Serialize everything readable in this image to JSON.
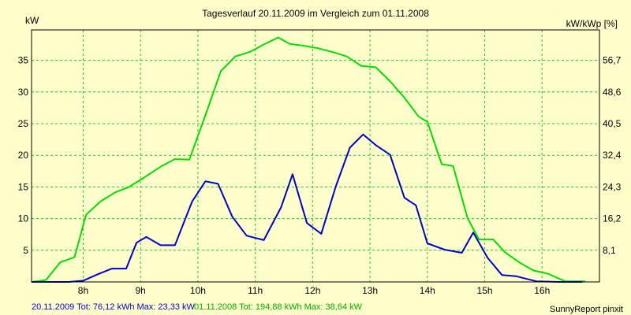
{
  "chart_data": {
    "type": "line",
    "title": "Tagesverlauf 20.11.2009 im Vergleich zum 01.11.2008",
    "y_left_label": "kW",
    "y_right_label": "kW/kWp [%]",
    "x_unit": "hours",
    "xlim": [
      7.1,
      17.0
    ],
    "ylim": [
      0,
      39.8
    ],
    "x_tick_values": [
      8,
      9,
      10,
      11,
      12,
      13,
      14,
      15,
      16
    ],
    "x_tick_labels": [
      "8h",
      "9h",
      "10h",
      "11h",
      "12h",
      "13h",
      "14h",
      "15h",
      "16h"
    ],
    "y_left_ticks": [
      5,
      10,
      15,
      20,
      25,
      30,
      35
    ],
    "y_left_tick_labels": [
      "5",
      "10",
      "15",
      "20",
      "25",
      "30",
      "35"
    ],
    "y_right_tick_labels": [
      "8,1",
      "16,2",
      "24,3",
      "32,4",
      "40,5",
      "48,6",
      "56,7"
    ],
    "grid": true,
    "series": [
      {
        "name": "20.11.2009",
        "color": "#0000CC",
        "x": [
          7.1,
          7.75,
          8.0,
          8.25,
          8.5,
          8.75,
          8.93,
          9.1,
          9.35,
          9.6,
          9.9,
          10.13,
          10.35,
          10.6,
          10.85,
          11.15,
          11.45,
          11.65,
          11.9,
          12.15,
          12.4,
          12.65,
          12.88,
          13.1,
          13.35,
          13.6,
          13.8,
          14.0,
          14.3,
          14.6,
          14.8,
          15.05,
          15.3,
          15.55,
          15.9,
          16.3,
          16.7
        ],
        "y": [
          0,
          0,
          0.2,
          1.2,
          2.1,
          2.1,
          6.2,
          7.1,
          5.8,
          5.8,
          12.7,
          15.9,
          15.5,
          10.3,
          7.3,
          6.6,
          11.8,
          17.0,
          9.3,
          7.6,
          15.0,
          21.2,
          23.3,
          21.6,
          20.1,
          13.3,
          12.1,
          6.1,
          5.1,
          4.6,
          7.8,
          3.8,
          1.1,
          0.9,
          0.1,
          0,
          0
        ]
      },
      {
        "name": "01.11.2008",
        "color": "#00E000",
        "x": [
          7.1,
          7.35,
          7.6,
          7.85,
          8.05,
          8.3,
          8.55,
          8.8,
          9.05,
          9.35,
          9.6,
          9.85,
          10.15,
          10.4,
          10.65,
          10.9,
          11.15,
          11.4,
          11.6,
          11.85,
          12.1,
          12.35,
          12.6,
          12.85,
          13.1,
          13.35,
          13.6,
          13.85,
          14.0,
          14.25,
          14.45,
          14.7,
          14.9,
          15.15,
          15.35,
          15.6,
          15.85,
          16.1,
          16.4,
          16.75
        ],
        "y": [
          0,
          0.3,
          3.1,
          3.9,
          10.6,
          12.7,
          14.1,
          15.0,
          16.4,
          18.2,
          19.4,
          19.3,
          26.8,
          33.3,
          35.6,
          36.3,
          37.5,
          38.6,
          37.6,
          37.3,
          36.9,
          36.3,
          35.6,
          34.1,
          33.9,
          31.7,
          29.1,
          26.1,
          25.3,
          18.6,
          18.3,
          10.1,
          6.7,
          6.7,
          4.7,
          3.1,
          1.8,
          1.3,
          0.1,
          0.1
        ]
      }
    ],
    "footer": {
      "left_a": "20.11.2009 Tot: 76,12 kWh Max: 23,33 kW",
      "left_b": "01.11.2008 Tot: 194,88 kWh Max: 38,64 kW",
      "right": "SunnyReport pinxit"
    }
  }
}
